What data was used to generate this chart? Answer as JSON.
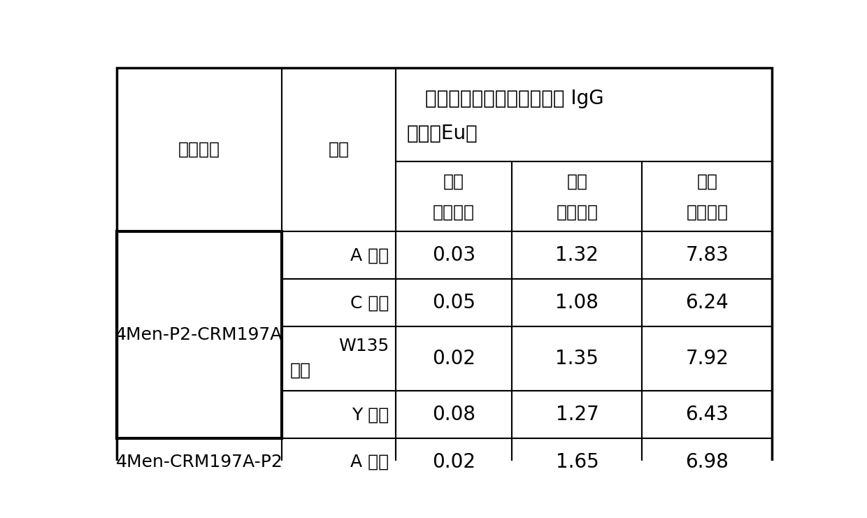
{
  "title_line1": "小鼠血清中抗流脑多糖抗体 IgG",
  "title_line2": "滴度（Eu）",
  "col_sub1_line1": "注射",
  "col_sub1_line2": "一针血清",
  "col_sub2_line1": "注射",
  "col_sub2_line2": "二针血清",
  "col_sub3_line1": "注射",
  "col_sub3_line2": "三针血清",
  "row_header1": "疫苗种类",
  "row_header2": "群类",
  "rows": [
    {
      "vaccine": "4Men-P2-CRM197A",
      "group_l1": "A 多糖",
      "group_l2": "",
      "v1": "0.03",
      "v2": "1.32",
      "v3": "7.83"
    },
    {
      "vaccine": "",
      "group_l1": "C 多糖",
      "group_l2": "",
      "v1": "0.05",
      "v2": "1.08",
      "v3": "6.24"
    },
    {
      "vaccine": "",
      "group_l1": "W135",
      "group_l2": "多糖",
      "v1": "0.02",
      "v2": "1.35",
      "v3": "7.92"
    },
    {
      "vaccine": "",
      "group_l1": "Y 多糖",
      "group_l2": "",
      "v1": "0.08",
      "v2": "1.27",
      "v3": "6.43"
    },
    {
      "vaccine": "4Men-CRM197A-P2",
      "group_l1": "A 多糖",
      "group_l2": "",
      "v1": "0.02",
      "v2": "1.65",
      "v3": "6.98"
    }
  ],
  "bg_color": "#ffffff",
  "line_color": "#000000",
  "font_size": 18,
  "data_font_size": 20
}
